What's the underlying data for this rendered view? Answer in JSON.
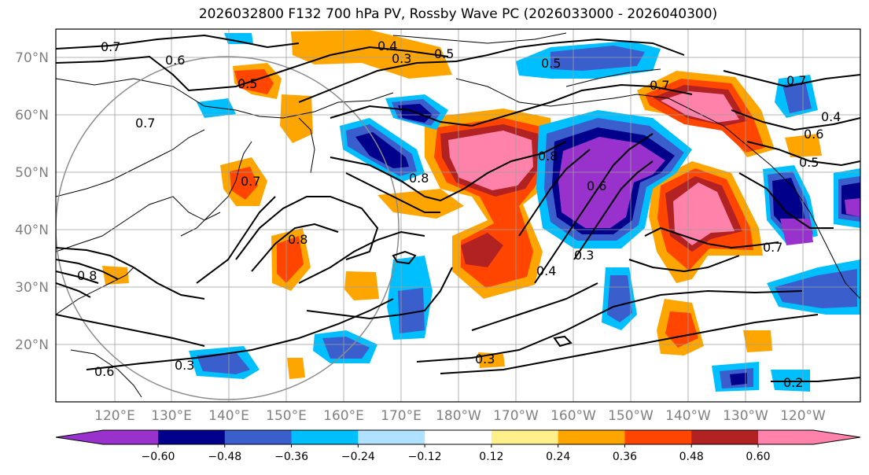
{
  "title": "2026032800 F132 700 hPa PV, Rossby Wave PC (2026033000 - 2026040300)",
  "lat_labels": [
    "70°N",
    "60°N",
    "50°N",
    "40°N",
    "30°N",
    "20°N"
  ],
  "lon_labels": [
    "120°E",
    "130°E",
    "140°E",
    "150°E",
    "160°E",
    "170°E",
    "180°W",
    "170°W",
    "160°W",
    "150°W",
    "140°W",
    "130°W",
    "120°W"
  ],
  "colorbar": {
    "ticks": [
      "−0.60",
      "−0.48",
      "−0.36",
      "−0.24",
      "−0.12",
      "0.12",
      "0.24",
      "0.36",
      "0.48",
      "0.60"
    ],
    "colors": [
      "#9932cc",
      "#00008b",
      "#3a5fcd",
      "#00bfff",
      "#b0e2ff",
      "#ffffff",
      "#fff08c",
      "#ffa500",
      "#ff4500",
      "#b22222",
      "#ff82ab"
    ]
  },
  "contour_labels": [
    "0.7",
    "0.6",
    "0.7",
    "0.5",
    "0.4",
    "0.3",
    "0.5",
    "0.5",
    "0.7",
    "0.7",
    "0.4",
    "0.6",
    "0.8",
    "0.5",
    "0.8",
    "0.6",
    "0.8",
    "0.7",
    "0.8",
    "0.4",
    "0.3",
    "0.7",
    "0.6",
    "0.3",
    "0.3",
    "0.2"
  ],
  "colors": {
    "purple": "#9932cc",
    "navy": "#00008b",
    "blue": "#3a5fcd",
    "cyan": "#00bfff",
    "lightblue": "#b0e2ff",
    "yellow": "#fff08c",
    "orange": "#ffa500",
    "redorange": "#ff4500",
    "darkred": "#b22222",
    "pink": "#ff82ab"
  }
}
